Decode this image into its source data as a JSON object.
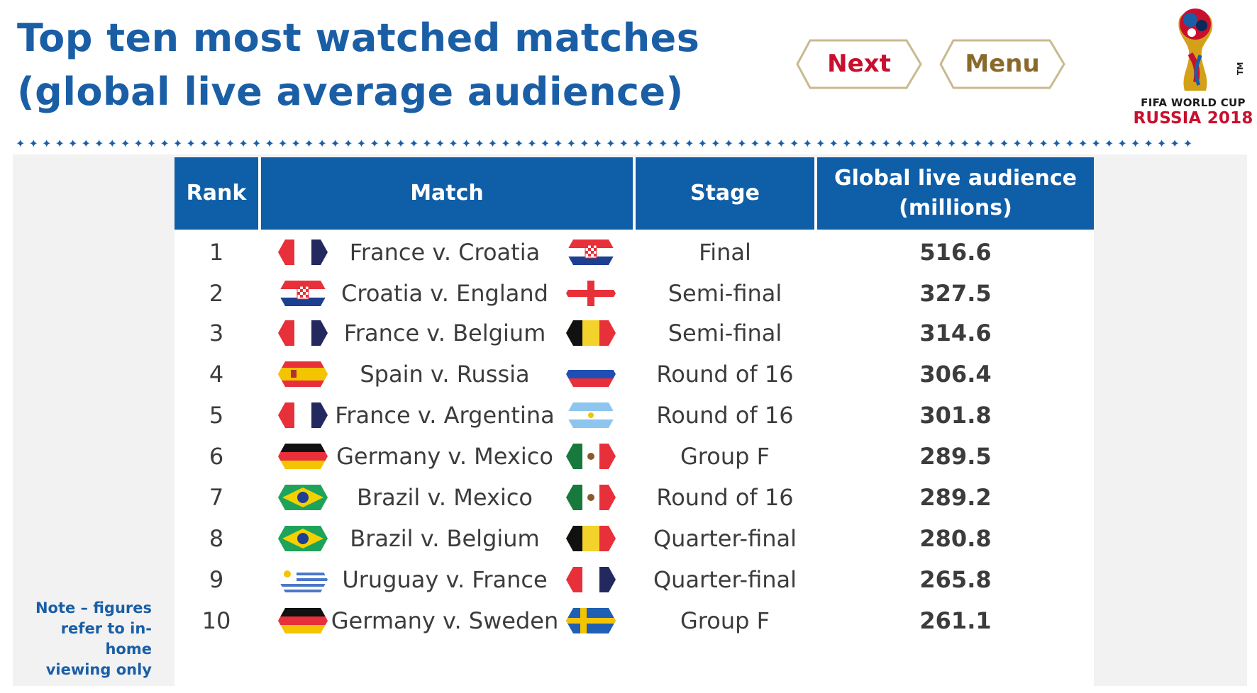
{
  "title": {
    "line1": "Top ten most watched matches",
    "line2": "(global live average audience)"
  },
  "buttons": {
    "next": "Next",
    "menu": "Menu"
  },
  "logo": {
    "line1": "FIFA WORLD CUP",
    "line2": "RUSSIA 2018",
    "tm": "TM"
  },
  "table": {
    "headers": {
      "rank": "Rank",
      "match": "Match",
      "stage": "Stage",
      "audience_line1": "Global live audience",
      "audience_line2": "(millions)"
    },
    "rows": [
      {
        "rank": "1",
        "match": "France v. Croatia",
        "flag_left": "france-flag-icon",
        "flag_right": "croatia-flag-icon",
        "stage": "Final",
        "audience": "516.6"
      },
      {
        "rank": "2",
        "match": "Croatia v. England",
        "flag_left": "croatia-flag-icon",
        "flag_right": "england-flag-icon",
        "stage": "Semi-final",
        "audience": "327.5"
      },
      {
        "rank": "3",
        "match": "France v. Belgium",
        "flag_left": "france-flag-icon",
        "flag_right": "belgium-flag-icon",
        "stage": "Semi-final",
        "audience": "314.6"
      },
      {
        "rank": "4",
        "match": "Spain v. Russia",
        "flag_left": "spain-flag-icon",
        "flag_right": "russia-flag-icon",
        "stage": "Round of 16",
        "audience": "306.4"
      },
      {
        "rank": "5",
        "match": "France v. Argentina",
        "flag_left": "france-flag-icon",
        "flag_right": "argentina-flag-icon",
        "stage": "Round of 16",
        "audience": "301.8"
      },
      {
        "rank": "6",
        "match": "Germany v. Mexico",
        "flag_left": "germany-flag-icon",
        "flag_right": "mexico-flag-icon",
        "stage": "Group F",
        "audience": "289.5"
      },
      {
        "rank": "7",
        "match": "Brazil v. Mexico",
        "flag_left": "brazil-flag-icon",
        "flag_right": "mexico-flag-icon",
        "stage": "Round of 16",
        "audience": "289.2"
      },
      {
        "rank": "8",
        "match": "Brazil v. Belgium",
        "flag_left": "brazil-flag-icon",
        "flag_right": "belgium-flag-icon",
        "stage": "Quarter-final",
        "audience": "280.8"
      },
      {
        "rank": "9",
        "match": "Uruguay v. France",
        "flag_left": "uruguay-flag-icon",
        "flag_right": "france-flag-icon",
        "stage": "Quarter-final",
        "audience": "265.8"
      },
      {
        "rank": "10",
        "match": "Germany v. Sweden",
        "flag_left": "germany-flag-icon",
        "flag_right": "sweden-flag-icon",
        "stage": "Group F",
        "audience": "261.1"
      }
    ]
  },
  "note": {
    "line1": "Note – figures",
    "line2": "refer to in-home",
    "line3": "viewing only"
  },
  "colors": {
    "title_blue": "#1a5ea6",
    "header_blue": "#0f5ea8",
    "next_red": "#c8102e",
    "menu_gold": "#8a6a2c",
    "button_border": "#c9b98f",
    "panel_grey": "#f2f2f2"
  }
}
